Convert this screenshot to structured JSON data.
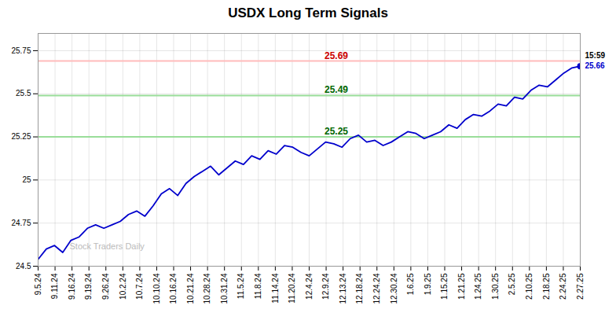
{
  "chart_data": {
    "type": "line",
    "title": "USDX Long Term Signals",
    "color": "#0000cc",
    "x": [
      0,
      1,
      2,
      3,
      4,
      5,
      6,
      7,
      8,
      9,
      10,
      11,
      12,
      13,
      14,
      15,
      16,
      17,
      18,
      19,
      20,
      21,
      22,
      23,
      24,
      25,
      26,
      27,
      28,
      29,
      30,
      31,
      32,
      33,
      34,
      35,
      36,
      37,
      38,
      39,
      40,
      41,
      42,
      43,
      44,
      45,
      46,
      47,
      48,
      49,
      50,
      51,
      52,
      53,
      54,
      55,
      56,
      57,
      58,
      59,
      60,
      61,
      62,
      63,
      64,
      65,
      66
    ],
    "values": [
      24.54,
      24.6,
      24.62,
      24.58,
      24.65,
      24.67,
      24.72,
      24.74,
      24.72,
      24.74,
      24.76,
      24.8,
      24.82,
      24.79,
      24.85,
      24.92,
      24.95,
      24.91,
      24.98,
      25.02,
      25.05,
      25.08,
      25.03,
      25.07,
      25.11,
      25.09,
      25.14,
      25.12,
      25.17,
      25.15,
      25.2,
      25.19,
      25.16,
      25.14,
      25.18,
      25.22,
      25.21,
      25.19,
      25.24,
      25.26,
      25.22,
      25.23,
      25.2,
      25.22,
      25.25,
      25.28,
      25.27,
      25.24,
      25.26,
      25.28,
      25.32,
      25.3,
      25.35,
      25.38,
      25.37,
      25.4,
      25.44,
      25.43,
      25.48,
      25.47,
      25.52,
      25.55,
      25.54,
      25.58,
      25.62,
      25.65,
      25.66
    ],
    "xlim": [
      0,
      66
    ],
    "xticks": [
      {
        "value": 0,
        "label": "9.5.24"
      },
      {
        "value": 2.0625,
        "label": "9.11.24"
      },
      {
        "value": 4.125,
        "label": "9.16.24"
      },
      {
        "value": 6.1875,
        "label": "9.19.24"
      },
      {
        "value": 8.25,
        "label": "9.26.24"
      },
      {
        "value": 10.3125,
        "label": "10.2.24"
      },
      {
        "value": 12.375,
        "label": "10.7.24"
      },
      {
        "value": 14.4375,
        "label": "10.10.24"
      },
      {
        "value": 16.5,
        "label": "10.16.24"
      },
      {
        "value": 18.5625,
        "label": "10.21.24"
      },
      {
        "value": 20.625,
        "label": "10.28.24"
      },
      {
        "value": 22.6875,
        "label": "10.31.24"
      },
      {
        "value": 24.75,
        "label": "11.5.24"
      },
      {
        "value": 26.8125,
        "label": "11.8.24"
      },
      {
        "value": 28.875,
        "label": "11.14.24"
      },
      {
        "value": 30.9375,
        "label": "11.20.24"
      },
      {
        "value": 33,
        "label": "12.4.24"
      },
      {
        "value": 35.0625,
        "label": "12.9.24"
      },
      {
        "value": 37.125,
        "label": "12.13.24"
      },
      {
        "value": 39.1875,
        "label": "12.18.24"
      },
      {
        "value": 41.25,
        "label": "12.24.24"
      },
      {
        "value": 43.3125,
        "label": "12.30.24"
      },
      {
        "value": 45.375,
        "label": "1.6.25"
      },
      {
        "value": 47.4375,
        "label": "1.9.25"
      },
      {
        "value": 49.5,
        "label": "1.15.25"
      },
      {
        "value": 51.5625,
        "label": "1.21.25"
      },
      {
        "value": 53.625,
        "label": "1.24.25"
      },
      {
        "value": 55.6875,
        "label": "1.30.25"
      },
      {
        "value": 57.75,
        "label": "2.5.25"
      },
      {
        "value": 59.8125,
        "label": "2.10.25"
      },
      {
        "value": 61.875,
        "label": "2.18.25"
      },
      {
        "value": 63.9375,
        "label": "2.24.25"
      },
      {
        "value": 66,
        "label": "2.27.25"
      }
    ],
    "ylim": [
      24.5,
      25.85
    ],
    "yticks": [
      24.5,
      24.75,
      25,
      25.25,
      25.5,
      25.75
    ],
    "grid": true,
    "hlines": [
      {
        "value": 25.69,
        "label": "25.69",
        "color": "#ffbbbb",
        "label_color": "#cc0000"
      },
      {
        "value": 25.49,
        "label": "25.49",
        "color": "#99dd99",
        "label_color": "#006600"
      },
      {
        "value": 25.25,
        "label": "25.25",
        "color": "#99dd99",
        "label_color": "#006600"
      }
    ],
    "annotations": [
      {
        "text": "15:59",
        "color": "#000000"
      },
      {
        "text": "25.66",
        "color": "#0000cc"
      }
    ],
    "watermark": {
      "text": "Stock Traders Daily",
      "color": "#bbbbbb"
    }
  }
}
